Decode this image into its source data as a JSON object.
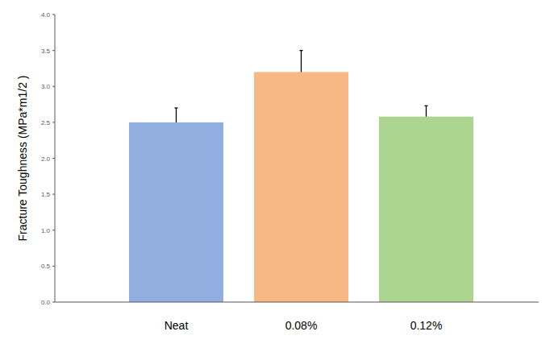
{
  "chart_data": {
    "type": "bar",
    "y_label": "Fracture Toughness (MPa*m1/2 )",
    "categories": [
      "Neat",
      "0.08%",
      "0.12%"
    ],
    "values": [
      2.5,
      3.2,
      2.58
    ],
    "errors": [
      0.2,
      0.3,
      0.15
    ],
    "colors": [
      "#92aee0",
      "#f8b885",
      "#acd690"
    ],
    "ylim": [
      0,
      4
    ],
    "yticks": [
      {
        "value": 0,
        "label": "0.0"
      },
      0.5,
      {
        "value": 1,
        "label": "1.0"
      },
      1.5,
      {
        "value": 2,
        "label": "2.0"
      },
      2.5,
      {
        "value": 3,
        "label": "3.0"
      },
      3.5,
      {
        "value": 4,
        "label": "4.0"
      }
    ],
    "grid": false
  }
}
